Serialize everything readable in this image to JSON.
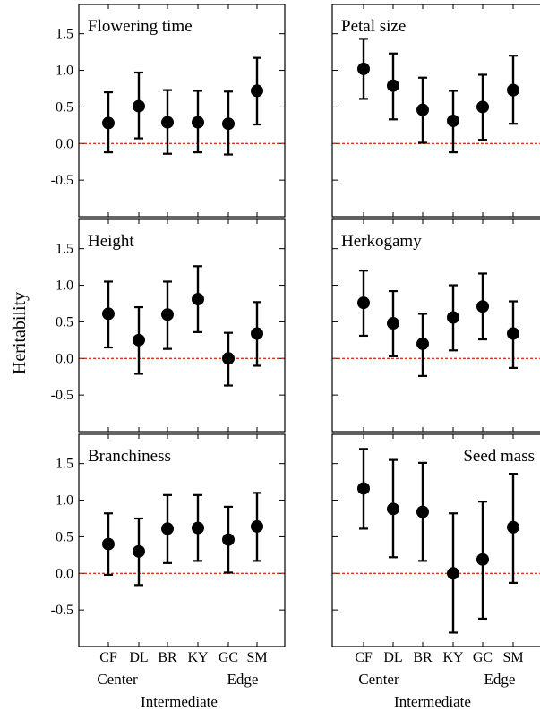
{
  "chart_data": [
    {
      "type": "scatter",
      "title": "Flowering time",
      "categories": [
        "CF",
        "DL",
        "BR",
        "KY",
        "GC",
        "SM"
      ],
      "values": [
        0.28,
        0.51,
        0.29,
        0.29,
        0.27,
        0.72
      ],
      "lower": [
        -0.12,
        0.07,
        -0.14,
        -0.12,
        -0.15,
        0.26
      ],
      "upper": [
        0.7,
        0.97,
        0.73,
        0.72,
        0.71,
        1.17
      ],
      "reference_line": 0.0,
      "ylim": [
        -1.0,
        1.9
      ],
      "yticks": [
        "1.5",
        "1.0",
        "0.5",
        "0.0",
        "-0.5"
      ]
    },
    {
      "type": "scatter",
      "title": "Petal size",
      "categories": [
        "CF",
        "DL",
        "BR",
        "KY",
        "GC",
        "SM"
      ],
      "values": [
        1.02,
        0.79,
        0.46,
        0.31,
        0.5,
        0.73
      ],
      "lower": [
        0.61,
        0.33,
        0.01,
        -0.12,
        0.05,
        0.27
      ],
      "upper": [
        1.43,
        1.23,
        0.9,
        0.72,
        0.94,
        1.2
      ],
      "reference_line": 0.0,
      "ylim": [
        -1.0,
        1.9
      ]
    },
    {
      "type": "scatter",
      "title": "Height",
      "categories": [
        "CF",
        "DL",
        "BR",
        "KY",
        "GC",
        "SM"
      ],
      "values": [
        0.61,
        0.25,
        0.6,
        0.81,
        0.0,
        0.34
      ],
      "lower": [
        0.15,
        -0.21,
        0.13,
        0.36,
        -0.37,
        -0.1
      ],
      "upper": [
        1.05,
        0.7,
        1.05,
        1.26,
        0.35,
        0.77
      ],
      "reference_line": 0.0,
      "ylim": [
        -1.0,
        1.9
      ],
      "yticks": [
        "1.5",
        "1.0",
        "0.5",
        "0.0",
        "-0.5"
      ]
    },
    {
      "type": "scatter",
      "title": "Herkogamy",
      "categories": [
        "CF",
        "DL",
        "BR",
        "KY",
        "GC",
        "SM"
      ],
      "values": [
        0.76,
        0.48,
        0.2,
        0.56,
        0.71,
        0.34
      ],
      "lower": [
        0.31,
        0.03,
        -0.24,
        0.11,
        0.26,
        -0.13
      ],
      "upper": [
        1.2,
        0.92,
        0.61,
        1.0,
        1.16,
        0.78
      ],
      "reference_line": 0.0,
      "ylim": [
        -1.0,
        1.9
      ]
    },
    {
      "type": "scatter",
      "title": "Branchiness",
      "categories": [
        "CF",
        "DL",
        "BR",
        "KY",
        "GC",
        "SM"
      ],
      "values": [
        0.4,
        0.3,
        0.61,
        0.62,
        0.46,
        0.64
      ],
      "lower": [
        -0.02,
        -0.16,
        0.14,
        0.17,
        0.01,
        0.17
      ],
      "upper": [
        0.82,
        0.75,
        1.07,
        1.07,
        0.91,
        1.1
      ],
      "reference_line": 0.0,
      "ylim": [
        -1.0,
        1.9
      ],
      "yticks": [
        "1.5",
        "1.0",
        "0.5",
        "0.0",
        "-0.5"
      ]
    },
    {
      "type": "scatter",
      "title": "Seed mass",
      "categories": [
        "CF",
        "DL",
        "BR",
        "KY",
        "GC",
        "SM"
      ],
      "values": [
        1.16,
        0.88,
        0.84,
        0.0,
        0.19,
        0.63
      ],
      "lower": [
        0.61,
        0.22,
        0.17,
        -0.81,
        -0.62,
        -0.13
      ],
      "upper": [
        1.7,
        1.55,
        1.51,
        0.82,
        0.98,
        1.36
      ],
      "reference_line": 0.0,
      "ylim": [
        -1.0,
        1.9
      ]
    }
  ],
  "ylabel": "Heritability",
  "group_labels": {
    "center": "Center",
    "edge": "Edge",
    "intermediate": "Intermediate"
  },
  "colors": {
    "reference_line": "#d63a1e",
    "points": "#000000"
  }
}
